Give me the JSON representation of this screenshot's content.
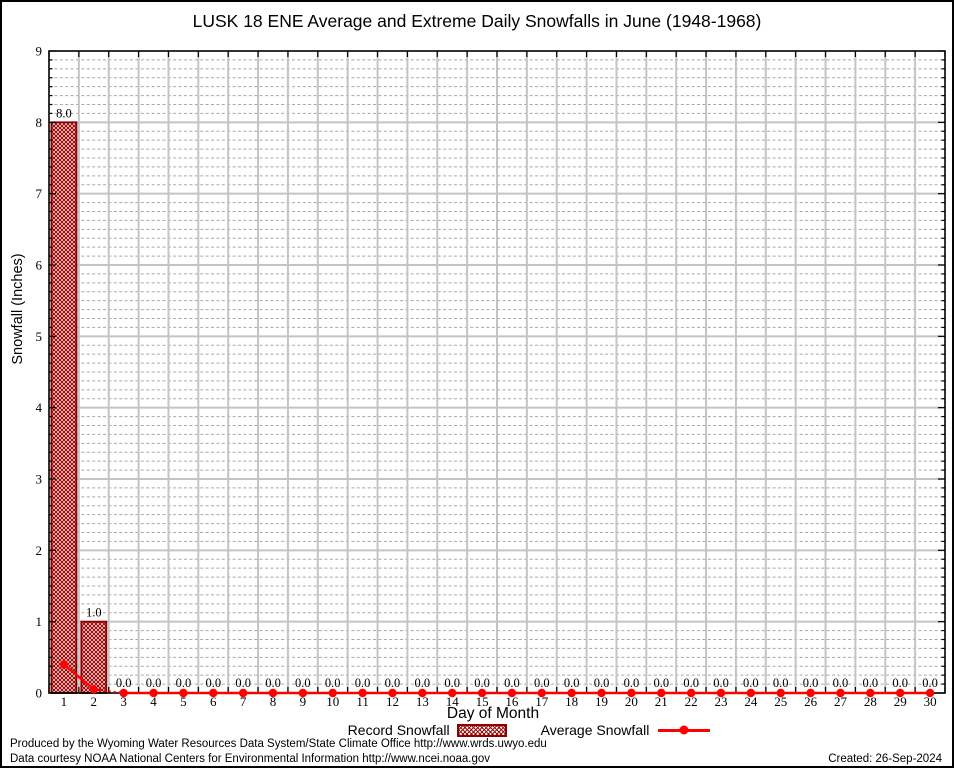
{
  "title": "LUSK 18 ENE Average and Extreme Daily Snowfalls in June (1948-1968)",
  "chart_data": {
    "type": "bar",
    "title": "LUSK 18 ENE Average and Extreme Daily Snowfalls in June (1948-1968)",
    "xlabel": "Day of Month",
    "ylabel": "Snowfall (Inches)",
    "ylim": [
      0,
      9
    ],
    "yticks": [
      0,
      1,
      2,
      3,
      4,
      5,
      6,
      7,
      8,
      9
    ],
    "y_minor_divisions": 8,
    "grid": "major solid gray lines at integer y and day boundaries; minor dashed gray horizontal lines",
    "legend_position": "bottom center",
    "x": [
      1,
      2,
      3,
      4,
      5,
      6,
      7,
      8,
      9,
      10,
      11,
      12,
      13,
      14,
      15,
      16,
      17,
      18,
      19,
      20,
      21,
      22,
      23,
      24,
      25,
      26,
      27,
      28,
      29,
      30
    ],
    "series": [
      {
        "name": "Record Snowfall",
        "type": "bar",
        "style": "dark-red crosshatch",
        "values": [
          8.0,
          1.0,
          0.0,
          0.0,
          0.0,
          0.0,
          0.0,
          0.0,
          0.0,
          0.0,
          0.0,
          0.0,
          0.0,
          0.0,
          0.0,
          0.0,
          0.0,
          0.0,
          0.0,
          0.0,
          0.0,
          0.0,
          0.0,
          0.0,
          0.0,
          0.0,
          0.0,
          0.0,
          0.0,
          0.0
        ]
      },
      {
        "name": "Average Snowfall",
        "type": "line",
        "style": "red line with filled circle markers",
        "values": [
          0.4,
          0.05,
          0.0,
          0.0,
          0.0,
          0.0,
          0.0,
          0.0,
          0.0,
          0.0,
          0.0,
          0.0,
          0.0,
          0.0,
          0.0,
          0.0,
          0.0,
          0.0,
          0.0,
          0.0,
          0.0,
          0.0,
          0.0,
          0.0,
          0.0,
          0.0,
          0.0,
          0.0,
          0.0,
          0.0
        ]
      }
    ],
    "point_labels": [
      "8.0",
      "1.0",
      "0.0",
      "0.0",
      "0.0",
      "0.0",
      "0.0",
      "0.0",
      "0.0",
      "0.0",
      "0.0",
      "0.0",
      "0.0",
      "0.0",
      "0.0",
      "0.0",
      "0.0",
      "0.0",
      "0.0",
      "0.0",
      "0.0",
      "0.0",
      "0.0",
      "0.0",
      "0.0",
      "0.0",
      "0.0",
      "0.0",
      "0.0",
      "0.0"
    ]
  },
  "colors": {
    "record": "#8b0000",
    "record_hatch": "#9e0b0b",
    "average": "#ff0000",
    "major_grid": "#c4c4c4",
    "minor_grid": "#a8a8a8",
    "axis": "#000000"
  },
  "footer": {
    "line1": "Produced by the Wyoming Water Resources Data System/State Climate Office http://www.wrds.uwyo.edu",
    "line2": "Data courtesy NOAA National Centers for Environmental Information http://www.ncei.noaa.gov",
    "created": "Created: 26-Sep-2024"
  }
}
